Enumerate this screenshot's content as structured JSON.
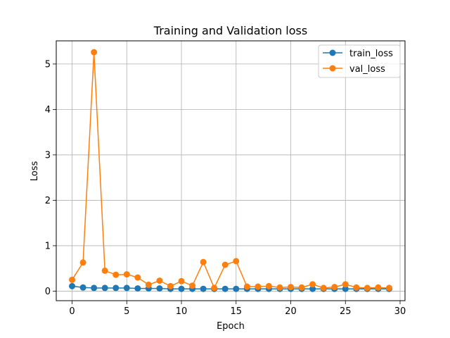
{
  "chart_data": {
    "type": "line",
    "title": "Training and Validation loss",
    "xlabel": "Epoch",
    "ylabel": "Loss",
    "xlim": [
      -1.45,
      30.45
    ],
    "ylim": [
      -0.21,
      5.51
    ],
    "xticks": [
      0,
      5,
      10,
      15,
      20,
      25,
      30
    ],
    "yticks": [
      0,
      1,
      2,
      3,
      4,
      5
    ],
    "grid": true,
    "legend_position": "top-right",
    "x": [
      0,
      1,
      2,
      3,
      4,
      5,
      6,
      7,
      8,
      9,
      10,
      11,
      12,
      13,
      14,
      15,
      16,
      17,
      18,
      19,
      20,
      21,
      22,
      23,
      24,
      25,
      26,
      27,
      28,
      29
    ],
    "series": [
      {
        "name": "train_loss",
        "color": "#1f77b4",
        "marker": "circle",
        "values": [
          0.11,
          0.08,
          0.07,
          0.07,
          0.07,
          0.07,
          0.06,
          0.06,
          0.06,
          0.05,
          0.05,
          0.05,
          0.05,
          0.05,
          0.05,
          0.05,
          0.05,
          0.05,
          0.05,
          0.05,
          0.05,
          0.05,
          0.05,
          0.05,
          0.05,
          0.05,
          0.05,
          0.05,
          0.05,
          0.05
        ]
      },
      {
        "name": "val_loss",
        "color": "#ff7f0e",
        "marker": "circle",
        "values": [
          0.25,
          0.63,
          5.26,
          0.45,
          0.36,
          0.37,
          0.3,
          0.14,
          0.23,
          0.11,
          0.22,
          0.12,
          0.64,
          0.07,
          0.58,
          0.66,
          0.1,
          0.1,
          0.11,
          0.08,
          0.09,
          0.08,
          0.15,
          0.07,
          0.09,
          0.15,
          0.08,
          0.07,
          0.08,
          0.07
        ]
      }
    ]
  }
}
